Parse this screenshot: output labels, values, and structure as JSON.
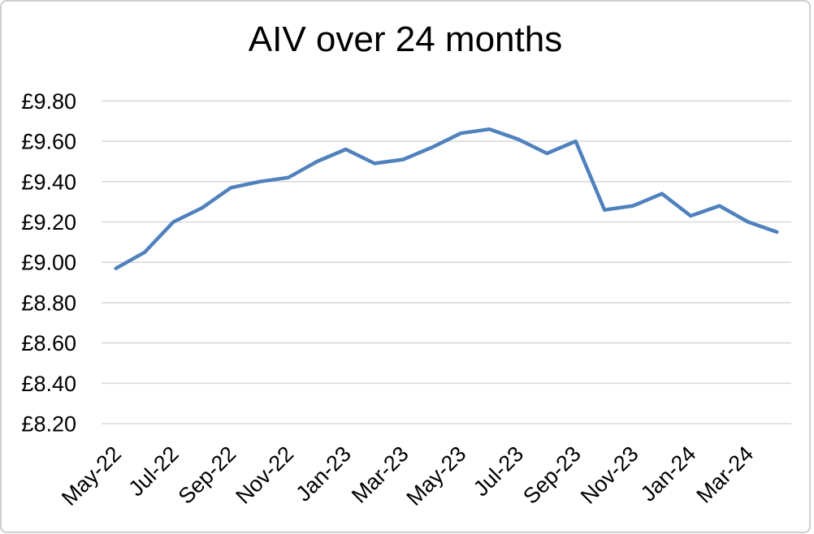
{
  "chart_data": {
    "type": "line",
    "title": "AIV over 24 months",
    "xlabel": "",
    "ylabel": "",
    "categories": [
      "May-22",
      "Jun-22",
      "Jul-22",
      "Aug-22",
      "Sep-22",
      "Oct-22",
      "Nov-22",
      "Dec-22",
      "Jan-23",
      "Feb-23",
      "Mar-23",
      "Apr-23",
      "May-23",
      "Jun-23",
      "Jul-23",
      "Aug-23",
      "Sep-23",
      "Oct-23",
      "Nov-23",
      "Dec-23",
      "Jan-24",
      "Feb-24",
      "Mar-24",
      "Apr-24"
    ],
    "values": [
      8.97,
      9.05,
      9.2,
      9.27,
      9.37,
      9.4,
      9.42,
      9.5,
      9.56,
      9.49,
      9.51,
      9.57,
      9.64,
      9.66,
      9.61,
      9.54,
      9.6,
      9.26,
      9.28,
      9.34,
      9.23,
      9.28,
      9.2,
      9.15
    ],
    "currency_prefix": "£",
    "ylim": [
      8.2,
      9.8
    ],
    "y_ticks": [
      8.2,
      8.4,
      8.6,
      8.8,
      9.0,
      9.2,
      9.4,
      9.6,
      9.8
    ],
    "y_tick_labels": [
      "£8.20",
      "£8.40",
      "£8.60",
      "£8.80",
      "£9.00",
      "£9.20",
      "£9.40",
      "£9.60",
      "£9.80"
    ],
    "x_tick_labels": [
      "May-22",
      "Jul-22",
      "Sep-22",
      "Nov-22",
      "Jan-23",
      "Mar-23",
      "May-23",
      "Jul-23",
      "Sep-23",
      "Nov-23",
      "Jan-24",
      "Mar-24"
    ],
    "x_tick_every": 2,
    "x_tick_rotation_deg": -45,
    "grid": "horizontal",
    "legend": "none",
    "markers": "none",
    "colors": {
      "line": "#4F81BD",
      "gridline": "#D9D9D9",
      "text": "#000000",
      "border": "#D0CECE",
      "background": "#FFFFFF"
    }
  }
}
